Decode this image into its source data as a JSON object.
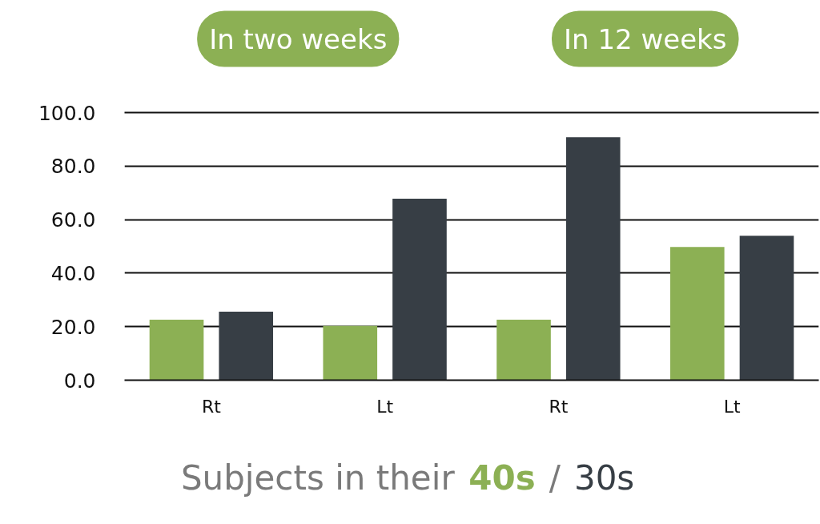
{
  "chart_data": {
    "type": "bar",
    "categories": [
      "Rt",
      "Lt",
      "Rt",
      "Lt"
    ],
    "series": [
      {
        "name": "40s",
        "color": "#8cb054",
        "values": [
          22.6,
          20.3,
          22.6,
          49.8
        ]
      },
      {
        "name": "30s",
        "color": "#373e45",
        "values": [
          25.6,
          67.8,
          90.8,
          54.0
        ]
      }
    ],
    "ylim": [
      0,
      100
    ],
    "yticks": [
      {
        "value": 0,
        "label": "0.0"
      },
      {
        "value": 20,
        "label": "20.0"
      },
      {
        "value": 40,
        "label": "40.0"
      },
      {
        "value": 60,
        "label": "60.0"
      },
      {
        "value": 80,
        "label": "80.0"
      },
      {
        "value": 100,
        "label": "100.0"
      }
    ],
    "grid": "y",
    "legend": "bottom",
    "legend_title": "Subjects in their",
    "annotations": [
      "In two weeks",
      "In 12 weeks",
      "/"
    ]
  }
}
